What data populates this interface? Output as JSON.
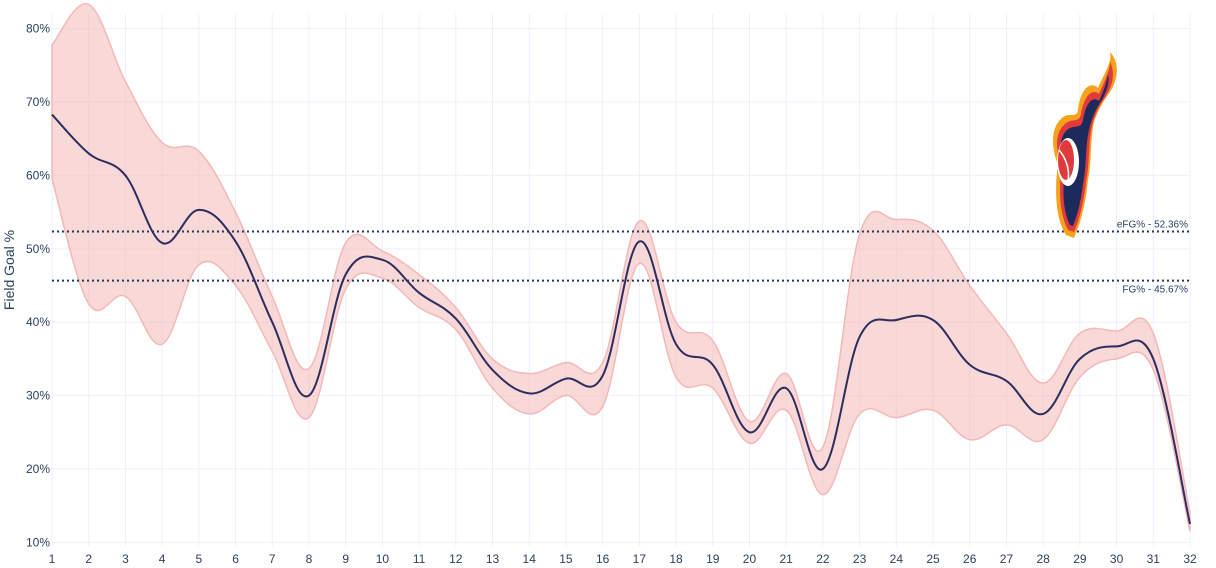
{
  "chart_data": {
    "type": "line",
    "title": "",
    "xlabel": "",
    "ylabel": "Field Goal %",
    "xlim": [
      1,
      32
    ],
    "ylim": [
      9.5,
      82
    ],
    "grid": true,
    "x": [
      1,
      2,
      3,
      4,
      5,
      6,
      7,
      8,
      9,
      10,
      11,
      12,
      13,
      14,
      15,
      16,
      17,
      18,
      19,
      20,
      21,
      22,
      23,
      24,
      25,
      26,
      27,
      28,
      29,
      30,
      31,
      32
    ],
    "x_tick_labels": [
      "1",
      "2",
      "3",
      "4",
      "5",
      "6",
      "7",
      "8",
      "9",
      "10",
      "11",
      "12",
      "13",
      "14",
      "15",
      "16",
      "17",
      "18",
      "19",
      "20",
      "21",
      "22",
      "23",
      "24",
      "25",
      "26",
      "27",
      "28",
      "29",
      "30",
      "31",
      "32"
    ],
    "y_ticks": [
      10,
      20,
      30,
      40,
      50,
      60,
      70,
      80
    ],
    "y_tick_labels": [
      "10%",
      "20%",
      "30%",
      "40%",
      "50%",
      "60%",
      "70%",
      "80%"
    ],
    "series": [
      {
        "kind": "line",
        "color": "#2c2c5e",
        "values": [
          68.3,
          63.0,
          60.0,
          50.8,
          55.3,
          51.0,
          40.0,
          30.0,
          46.5,
          48.5,
          44.0,
          40.5,
          33.5,
          30.3,
          32.3,
          32.7,
          51.0,
          37.0,
          34.2,
          25.0,
          31.0,
          20.0,
          38.0,
          40.3,
          40.3,
          34.2,
          32.0,
          27.5,
          35.0,
          36.7,
          35.0,
          12.5
        ]
      },
      {
        "kind": "band",
        "color": "#f4b8b8",
        "upper": [
          77.8,
          83.3,
          72.8,
          64.5,
          63.3,
          55.0,
          43.5,
          33.7,
          50.8,
          49.7,
          46.5,
          42.0,
          35.0,
          33.0,
          34.5,
          34.5,
          53.8,
          40.0,
          37.5,
          26.5,
          33.0,
          23.0,
          52.0,
          54.0,
          52.5,
          45.0,
          38.5,
          31.7,
          38.5,
          38.8,
          38.5,
          14.0
        ],
        "lower": [
          59.5,
          42.5,
          43.5,
          37.0,
          47.8,
          45.0,
          36.0,
          27.0,
          44.5,
          46.0,
          42.0,
          39.0,
          31.0,
          27.5,
          30.0,
          28.5,
          48.0,
          32.5,
          31.0,
          23.5,
          28.0,
          16.5,
          27.5,
          27.0,
          28.0,
          24.0,
          26.0,
          24.0,
          32.5,
          35.0,
          33.5,
          11.5
        ]
      }
    ],
    "reference_lines": [
      {
        "value": 52.36,
        "label": "eFG% - 52.36%",
        "color": "#1f3a60"
      },
      {
        "value": 45.67,
        "label": "FG% - 45.67%",
        "color": "#1f3a60"
      }
    ]
  }
}
